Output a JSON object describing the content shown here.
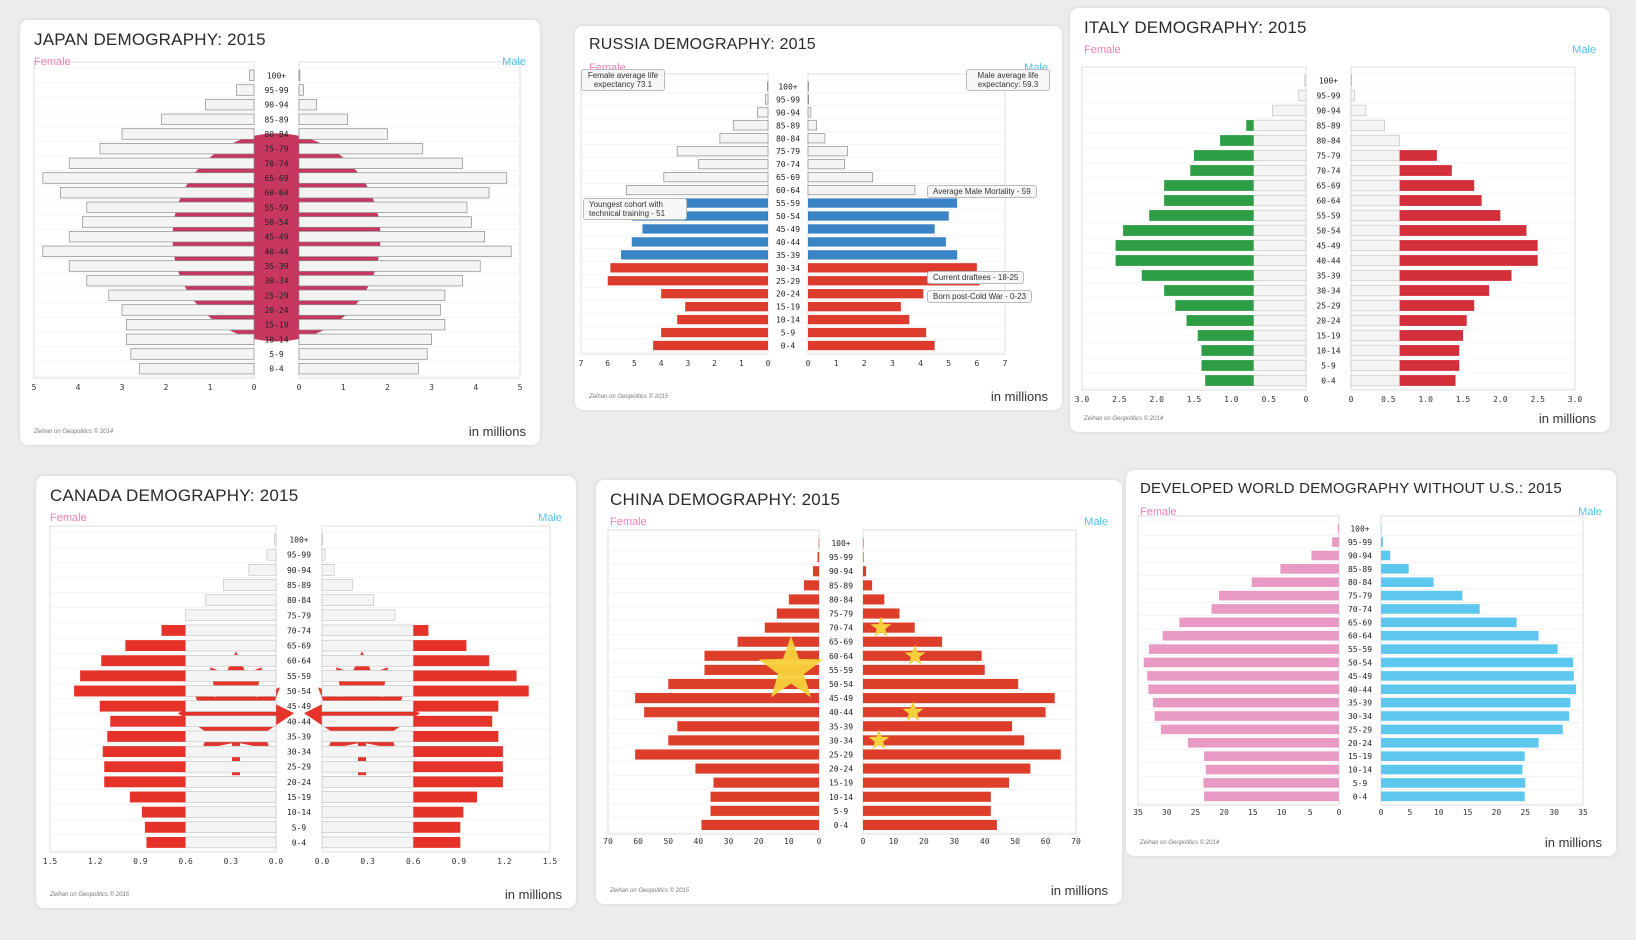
{
  "age_groups": [
    "0-4",
    "5-9",
    "10-14",
    "15-19",
    "20-24",
    "25-29",
    "30-34",
    "35-39",
    "40-44",
    "45-49",
    "50-54",
    "55-59",
    "60-64",
    "65-69",
    "70-74",
    "75-79",
    "80-84",
    "85-89",
    "90-94",
    "95-99",
    "100+"
  ],
  "chart_data": [
    {
      "type": "bar",
      "title": "JAPAN DEMOGRAPHY: 2015",
      "female_label": "Female",
      "male_label": "Male",
      "units": "in millions",
      "credit": "Zeihan on Geopolitics © 2014",
      "xlim": [
        0,
        5
      ],
      "ticks": [
        5,
        4,
        3,
        2,
        1,
        0
      ],
      "ticks_right": [
        0,
        1,
        2,
        3,
        4,
        5
      ],
      "female": [
        2.6,
        2.8,
        2.9,
        2.9,
        3.0,
        3.3,
        3.8,
        4.2,
        4.8,
        4.2,
        3.9,
        3.8,
        4.4,
        4.8,
        4.2,
        3.5,
        3.0,
        2.1,
        1.1,
        0.4,
        0.1
      ],
      "male": [
        2.7,
        2.9,
        3.0,
        3.3,
        3.2,
        3.3,
        3.7,
        4.1,
        4.8,
        4.2,
        3.9,
        3.8,
        4.3,
        4.7,
        3.7,
        2.8,
        2.0,
        1.1,
        0.4,
        0.1,
        0.02
      ],
      "colors": {
        "bar": "#f4f4f4",
        "accent": "#c8375f"
      }
    },
    {
      "type": "bar",
      "title": "RUSSIA DEMOGRAPHY: 2015",
      "female_label": "Female",
      "male_label": "Male",
      "units": "in millions",
      "credit": "Zeihan on Geopolitics © 2015",
      "xlim": [
        0,
        7
      ],
      "ticks": [
        7,
        6,
        5,
        4,
        3,
        2,
        1,
        0
      ],
      "ticks_right": [
        0,
        1,
        2,
        3,
        4,
        5,
        6,
        7
      ],
      "female": [
        4.3,
        4.0,
        3.4,
        3.1,
        4.0,
        6.0,
        5.9,
        5.5,
        5.1,
        4.7,
        5.1,
        6.0,
        5.3,
        3.9,
        2.6,
        3.4,
        1.8,
        1.3,
        0.4,
        0.1,
        0.02
      ],
      "male": [
        4.5,
        4.2,
        3.6,
        3.3,
        4.1,
        6.1,
        6.0,
        5.3,
        4.9,
        4.5,
        5.0,
        5.3,
        3.8,
        2.3,
        1.3,
        1.4,
        0.6,
        0.3,
        0.1,
        0.02,
        0.01
      ],
      "colors": {
        "top": "#f4f4f4",
        "mid": "#3a83c5",
        "bottom": "#de3b2f"
      },
      "annotations": {
        "female_life": "Female average life expectancy 73.1",
        "male_life": "Male average life expectancy: 59.3",
        "male_mortality": "Average Male Mortality - 59",
        "youngest_cohort": "Youngest cohort with technical training - 51",
        "draftees": "Current draftees - 18-25",
        "post_cold_war": "Born post-Cold War - 0-23"
      }
    },
    {
      "type": "bar",
      "title": "ITALY DEMOGRAPHY: 2015",
      "female_label": "Female",
      "male_label": "Male",
      "units": "in millions",
      "credit": "Zeihan on Geopolitics © 2014",
      "xlim": [
        0,
        3
      ],
      "ticks": [
        "3.0",
        "2.5",
        "2.0",
        "1.5",
        "1.0",
        "0.5",
        "0"
      ],
      "ticks_right": [
        "0",
        "0.5",
        "1.0",
        "1.5",
        "2.0",
        "2.5",
        "3.0"
      ],
      "female": [
        1.35,
        1.4,
        1.4,
        1.45,
        1.6,
        1.75,
        1.9,
        2.2,
        2.55,
        2.55,
        2.45,
        2.1,
        1.9,
        1.9,
        1.55,
        1.5,
        1.15,
        0.8,
        0.45,
        0.1,
        0.02
      ],
      "male": [
        1.4,
        1.45,
        1.45,
        1.5,
        1.55,
        1.65,
        1.85,
        2.15,
        2.5,
        2.5,
        2.35,
        2.0,
        1.75,
        1.65,
        1.35,
        1.15,
        0.65,
        0.45,
        0.2,
        0.05,
        0.01
      ],
      "colors": {
        "female_bar": "#2e9e45",
        "male_bar": "#d32f3a",
        "base": "#f4f4f4"
      }
    },
    {
      "type": "bar",
      "title": "CANADA DEMOGRAPHY: 2015",
      "female_label": "Female",
      "male_label": "Male",
      "units": "in millions",
      "credit": "Zeihan on Geopolitics © 2015",
      "xlim": [
        0,
        1.5
      ],
      "ticks": [
        "1.5",
        "1.2",
        "0.9",
        "0.6",
        "0.3",
        "0.0"
      ],
      "ticks_right": [
        "0.0",
        "0.3",
        "0.6",
        "0.9",
        "1.2",
        "1.5"
      ],
      "female": [
        0.86,
        0.87,
        0.89,
        0.97,
        1.14,
        1.14,
        1.15,
        1.12,
        1.1,
        1.17,
        1.34,
        1.3,
        1.16,
        1.0,
        0.76,
        0.6,
        0.47,
        0.35,
        0.18,
        0.06,
        0.01
      ],
      "male": [
        0.91,
        0.91,
        0.93,
        1.02,
        1.19,
        1.19,
        1.19,
        1.16,
        1.12,
        1.16,
        1.36,
        1.28,
        1.1,
        0.95,
        0.7,
        0.48,
        0.34,
        0.2,
        0.08,
        0.02,
        0.003
      ],
      "colors": {
        "bar": "#e5332a",
        "center": "#f4f4f4"
      }
    },
    {
      "type": "bar",
      "title": "CHINA DEMOGRAPHY: 2015",
      "female_label": "Female",
      "male_label": "Male",
      "units": "in millions",
      "credit": "Zeihan on Geopolitics © 2015",
      "xlim": [
        0,
        70
      ],
      "ticks": [
        70,
        60,
        50,
        40,
        30,
        20,
        10,
        0
      ],
      "ticks_right": [
        0,
        10,
        20,
        30,
        40,
        50,
        60,
        70
      ],
      "female": [
        39,
        36,
        36,
        35,
        41,
        61,
        50,
        47,
        58,
        61,
        50,
        38,
        38,
        27,
        18,
        14,
        10,
        5,
        2,
        0.5,
        0.1
      ],
      "male": [
        44,
        42,
        42,
        48,
        55,
        65,
        53,
        49,
        60,
        63,
        51,
        40,
        39,
        26,
        17,
        12,
        7,
        3,
        1,
        0.2,
        0.05
      ],
      "colors": {
        "bar": "#dd3e2a",
        "star": "#f7d13b"
      }
    },
    {
      "type": "bar",
      "title": "DEVELOPED WORLD DEMOGRAPHY WITHOUT U.S.: 2015",
      "female_label": "Female",
      "male_label": "Male",
      "units": "in millions",
      "credit": "Zeihan on Geopolitics © 2014",
      "xlim": [
        0,
        35
      ],
      "ticks": [
        35,
        30,
        25,
        20,
        15,
        10,
        5,
        0
      ],
      "ticks_right": [
        0,
        5,
        10,
        15,
        20,
        25,
        30,
        35
      ],
      "female": [
        23.5,
        23.6,
        23.2,
        23.5,
        26.3,
        31,
        32.1,
        32.4,
        33.2,
        33.4,
        34.0,
        33.1,
        30.7,
        27.8,
        22.2,
        20.9,
        15.2,
        10.2,
        4.8,
        1.2,
        0.2
      ],
      "male": [
        24.9,
        25,
        24.5,
        24.9,
        27.3,
        31.5,
        32.6,
        32.8,
        33.8,
        33.4,
        33.3,
        30.6,
        27.3,
        23.5,
        17.1,
        14.1,
        9.1,
        4.8,
        1.6,
        0.3,
        0.05
      ],
      "colors": {
        "female_bar": "#e89ac4",
        "male_bar": "#5ec7ee"
      }
    }
  ]
}
